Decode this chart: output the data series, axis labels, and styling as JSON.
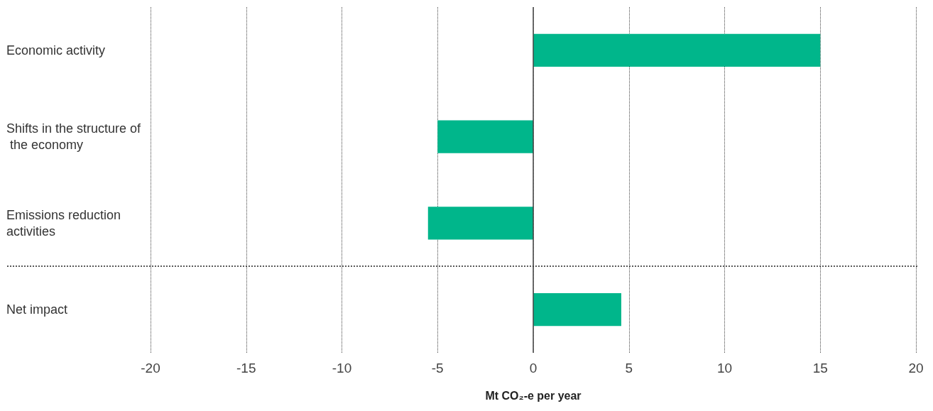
{
  "chart_data": {
    "type": "bar",
    "orientation": "horizontal",
    "categories": [
      "Economic activity",
      "Shifts in the structure of the economy",
      "Emissions reduction activities",
      "Net impact"
    ],
    "values": [
      15,
      -5,
      -5.5,
      4.6
    ],
    "color": "#00b68b",
    "xlabel": "Mt CO₂-e per year",
    "xlim": [
      -20,
      20
    ],
    "xticks": [
      -20,
      -15,
      -10,
      -5,
      0,
      5,
      10,
      15,
      20
    ],
    "ref_lines": [
      {
        "axis": "x",
        "value": 0,
        "color": "#444444",
        "line_style": "solid"
      }
    ],
    "grid": "x"
  }
}
